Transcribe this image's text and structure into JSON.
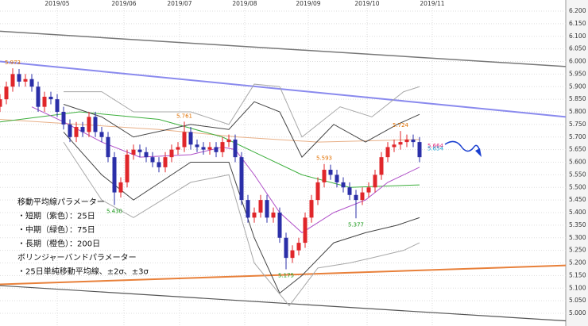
{
  "chart_data": {
    "type": "candlestick",
    "xlim": [
      0,
      178
    ],
    "ylim": [
      5.0,
      6.2
    ],
    "xticks": [
      {
        "value": 18,
        "label": "2019/05"
      },
      {
        "value": 39,
        "label": "2019/06"
      },
      {
        "value": 56.5,
        "label": "2019/07"
      },
      {
        "value": 77,
        "label": "2019/08"
      },
      {
        "value": 97,
        "label": "2019/09"
      },
      {
        "value": 115.5,
        "label": "2019/10"
      },
      {
        "value": 136,
        "label": "2019/11"
      }
    ],
    "yticks": [
      {
        "value": 5.0,
        "label": "5.000"
      },
      {
        "value": 5.05,
        "label": "5.050"
      },
      {
        "value": 5.1,
        "label": "5.100"
      },
      {
        "value": 5.15,
        "label": "5.150"
      },
      {
        "value": 5.2,
        "label": "5.200"
      },
      {
        "value": 5.25,
        "label": "5.250"
      },
      {
        "value": 5.3,
        "label": "5.300"
      },
      {
        "value": 5.35,
        "label": "5.350"
      },
      {
        "value": 5.4,
        "label": "5.400"
      },
      {
        "value": 5.45,
        "label": "5.450"
      },
      {
        "value": 5.5,
        "label": "5.500"
      },
      {
        "value": 5.55,
        "label": "5.550"
      },
      {
        "value": 5.6,
        "label": "5.600"
      },
      {
        "value": 5.65,
        "label": "5.650"
      },
      {
        "value": 5.7,
        "label": "5.700"
      },
      {
        "value": 5.75,
        "label": "5.750"
      },
      {
        "value": 5.8,
        "label": "5.800"
      },
      {
        "value": 5.85,
        "label": "5.850"
      },
      {
        "value": 5.9,
        "label": "5.900"
      },
      {
        "value": 5.95,
        "label": "5.950"
      },
      {
        "value": 6.0,
        "label": "6.000"
      },
      {
        "value": 6.05,
        "label": "6.050"
      },
      {
        "value": 6.1,
        "label": "6.100"
      },
      {
        "value": 6.15,
        "label": "6.150"
      },
      {
        "value": 6.2,
        "label": "6.200"
      }
    ],
    "grid": true,
    "up_color": "#e0262a",
    "down_color": "#2b2fa8",
    "candles": {
      "x": [
        0,
        2,
        4,
        6,
        8,
        10,
        12,
        14,
        16,
        18,
        20,
        22,
        24,
        26,
        28,
        30,
        32,
        34,
        36,
        38,
        40,
        42,
        44,
        46,
        48,
        50,
        52,
        54,
        56,
        58,
        60,
        62,
        64,
        66,
        68,
        70,
        72,
        74,
        76,
        78,
        80,
        82,
        84,
        86,
        88,
        90,
        92,
        94,
        96,
        98,
        100,
        102,
        104,
        106,
        108,
        110,
        112,
        114,
        116,
        118,
        120,
        122,
        124,
        126,
        128,
        130,
        132
      ],
      "open": [
        5.82,
        5.85,
        5.9,
        5.95,
        5.92,
        5.93,
        5.9,
        5.82,
        5.86,
        5.85,
        5.8,
        5.75,
        5.7,
        5.74,
        5.72,
        5.78,
        5.72,
        5.7,
        5.62,
        5.48,
        5.52,
        5.63,
        5.65,
        5.64,
        5.62,
        5.6,
        5.58,
        5.62,
        5.65,
        5.66,
        5.72,
        5.67,
        5.66,
        5.65,
        5.66,
        5.64,
        5.68,
        5.69,
        5.62,
        5.45,
        5.38,
        5.4,
        5.45,
        5.38,
        5.4,
        5.3,
        5.22,
        5.25,
        5.28,
        5.38,
        5.45,
        5.52,
        5.57,
        5.55,
        5.52,
        5.5,
        5.47,
        5.45,
        5.48,
        5.5,
        5.55,
        5.62,
        5.66,
        5.67,
        5.68,
        5.69,
        5.68
      ],
      "high": [
        5.87,
        5.92,
        5.973,
        5.97,
        5.95,
        5.95,
        5.92,
        5.88,
        5.88,
        5.87,
        5.82,
        5.77,
        5.76,
        5.76,
        5.8,
        5.8,
        5.74,
        5.72,
        5.64,
        5.54,
        5.65,
        5.67,
        5.67,
        5.66,
        5.64,
        5.62,
        5.64,
        5.67,
        5.68,
        5.761,
        5.74,
        5.69,
        5.68,
        5.68,
        5.68,
        5.7,
        5.71,
        5.71,
        5.64,
        5.47,
        5.42,
        5.47,
        5.47,
        5.42,
        5.42,
        5.32,
        5.27,
        5.3,
        5.4,
        5.47,
        5.54,
        5.593,
        5.59,
        5.57,
        5.54,
        5.52,
        5.49,
        5.5,
        5.52,
        5.57,
        5.64,
        5.68,
        5.69,
        5.724,
        5.71,
        5.71,
        5.7
      ],
      "low": [
        5.8,
        5.83,
        5.88,
        5.9,
        5.9,
        5.88,
        5.8,
        5.8,
        5.83,
        5.78,
        5.73,
        5.68,
        5.68,
        5.7,
        5.7,
        5.7,
        5.68,
        5.6,
        5.43,
        5.46,
        5.5,
        5.61,
        5.62,
        5.6,
        5.58,
        5.56,
        5.56,
        5.6,
        5.63,
        5.64,
        5.65,
        5.64,
        5.63,
        5.63,
        5.62,
        5.62,
        5.66,
        5.6,
        5.43,
        5.36,
        5.36,
        5.38,
        5.36,
        5.36,
        5.28,
        5.175,
        5.2,
        5.23,
        5.26,
        5.36,
        5.43,
        5.5,
        5.53,
        5.5,
        5.48,
        5.45,
        5.377,
        5.43,
        5.46,
        5.48,
        5.53,
        5.6,
        5.64,
        5.65,
        5.66,
        5.66,
        5.6
      ],
      "close": [
        5.85,
        5.9,
        5.95,
        5.92,
        5.93,
        5.9,
        5.82,
        5.86,
        5.85,
        5.8,
        5.75,
        5.7,
        5.74,
        5.72,
        5.78,
        5.72,
        5.7,
        5.62,
        5.48,
        5.52,
        5.63,
        5.65,
        5.64,
        5.62,
        5.6,
        5.58,
        5.62,
        5.65,
        5.66,
        5.72,
        5.67,
        5.66,
        5.65,
        5.66,
        5.64,
        5.68,
        5.69,
        5.62,
        5.45,
        5.38,
        5.4,
        5.45,
        5.38,
        5.4,
        5.3,
        5.22,
        5.25,
        5.28,
        5.38,
        5.45,
        5.52,
        5.57,
        5.55,
        5.52,
        5.5,
        5.47,
        5.45,
        5.48,
        5.5,
        5.55,
        5.62,
        5.66,
        5.67,
        5.68,
        5.69,
        5.68,
        5.62
      ]
    },
    "overlays": [
      {
        "color": "#777777",
        "width": 1.5,
        "x": [
          0,
          178
        ],
        "values": [
          6.12,
          5.98
        ]
      },
      {
        "color": "#8a8aee",
        "width": 2,
        "x": [
          0,
          178
        ],
        "values": [
          6.0,
          5.78
        ]
      },
      {
        "color": "#e8803a",
        "width": 2,
        "x": [
          0,
          178
        ],
        "values": [
          5.115,
          5.19
        ]
      },
      {
        "color": "#555555",
        "width": 1.2,
        "x": [
          0,
          178
        ],
        "values": [
          5.11,
          4.97
        ]
      },
      {
        "color": "#e8b088",
        "width": 1,
        "x": [
          0,
          50,
          75,
          100,
          132
        ],
        "values": [
          5.77,
          5.73,
          5.7,
          5.68,
          5.69
        ]
      },
      {
        "color": "#3daf3d",
        "width": 1,
        "x": [
          0,
          25,
          50,
          70,
          80,
          95,
          110,
          132
        ],
        "values": [
          5.76,
          5.8,
          5.77,
          5.7,
          5.64,
          5.55,
          5.5,
          5.51
        ]
      },
      {
        "color": "#b050c8",
        "width": 1,
        "x": [
          10,
          20,
          32,
          44,
          60,
          70,
          74,
          80,
          88,
          95,
          105,
          115,
          122,
          132
        ],
        "values": [
          5.82,
          5.76,
          5.68,
          5.62,
          5.63,
          5.66,
          5.65,
          5.55,
          5.4,
          5.32,
          5.4,
          5.45,
          5.52,
          5.58
        ]
      },
      {
        "color": "#444444",
        "width": 1,
        "x": [
          20,
          32,
          42,
          60,
          72,
          80,
          88,
          95,
          105,
          115,
          125,
          132
        ],
        "values": [
          5.83,
          5.78,
          5.7,
          5.75,
          5.73,
          5.84,
          5.8,
          5.62,
          5.75,
          5.68,
          5.75,
          5.79
        ]
      },
      {
        "color": "#444444",
        "width": 1,
        "x": [
          20,
          32,
          42,
          60,
          72,
          80,
          88,
          95,
          105,
          115,
          125,
          132
        ],
        "values": [
          5.72,
          5.55,
          5.45,
          5.6,
          5.6,
          5.3,
          5.08,
          5.15,
          5.28,
          5.32,
          5.35,
          5.38
        ]
      },
      {
        "color": "#a8a8a8",
        "width": 1,
        "x": [
          20,
          32,
          42,
          60,
          72,
          80,
          88,
          95,
          107,
          117,
          127,
          132
        ],
        "values": [
          5.88,
          5.88,
          5.8,
          5.8,
          5.75,
          5.91,
          5.9,
          5.7,
          5.82,
          5.78,
          5.88,
          5.9
        ]
      },
      {
        "color": "#a8a8a8",
        "width": 1,
        "x": [
          20,
          32,
          42,
          60,
          72,
          80,
          91,
          100,
          110,
          117,
          127,
          132
        ],
        "values": [
          5.68,
          5.45,
          5.38,
          5.52,
          5.55,
          5.2,
          5.03,
          5.18,
          5.2,
          5.22,
          5.25,
          5.28
        ]
      }
    ],
    "annotations": [
      {
        "x": 4,
        "value": 5.973,
        "label": "5.973",
        "color": "#e07000",
        "position": "above"
      },
      {
        "x": 36,
        "value": 5.43,
        "label": "5.430",
        "color": "#1a9a1a",
        "position": "below"
      },
      {
        "x": 58,
        "value": 5.761,
        "label": "5.761",
        "color": "#e07000",
        "position": "above"
      },
      {
        "x": 90,
        "value": 5.175,
        "label": "5.175",
        "color": "#1a9a1a",
        "position": "below"
      },
      {
        "x": 102,
        "value": 5.593,
        "label": "5.593",
        "color": "#e07000",
        "position": "above"
      },
      {
        "x": 112,
        "value": 5.377,
        "label": "5.377",
        "color": "#1a9a1a",
        "position": "below"
      },
      {
        "x": 126,
        "value": 5.724,
        "label": "5.724",
        "color": "#e07000",
        "position": "above"
      },
      {
        "x": 134,
        "value": 5.664,
        "label": "5.664",
        "color": "#e0267a",
        "position": "right"
      },
      {
        "x": 134,
        "value": 5.654,
        "label": "5.654",
        "color": "#1aa0d0",
        "position": "right"
      }
    ],
    "notes": [
      "移動平均線パラメーター",
      "・短期（紫色）：25日",
      "・中期（緑色）：75日",
      "・長期（橙色）：200日",
      "ボリンジャーバンドパラメーター",
      "・25日単純移動平均線、±2σ、±3σ"
    ]
  }
}
